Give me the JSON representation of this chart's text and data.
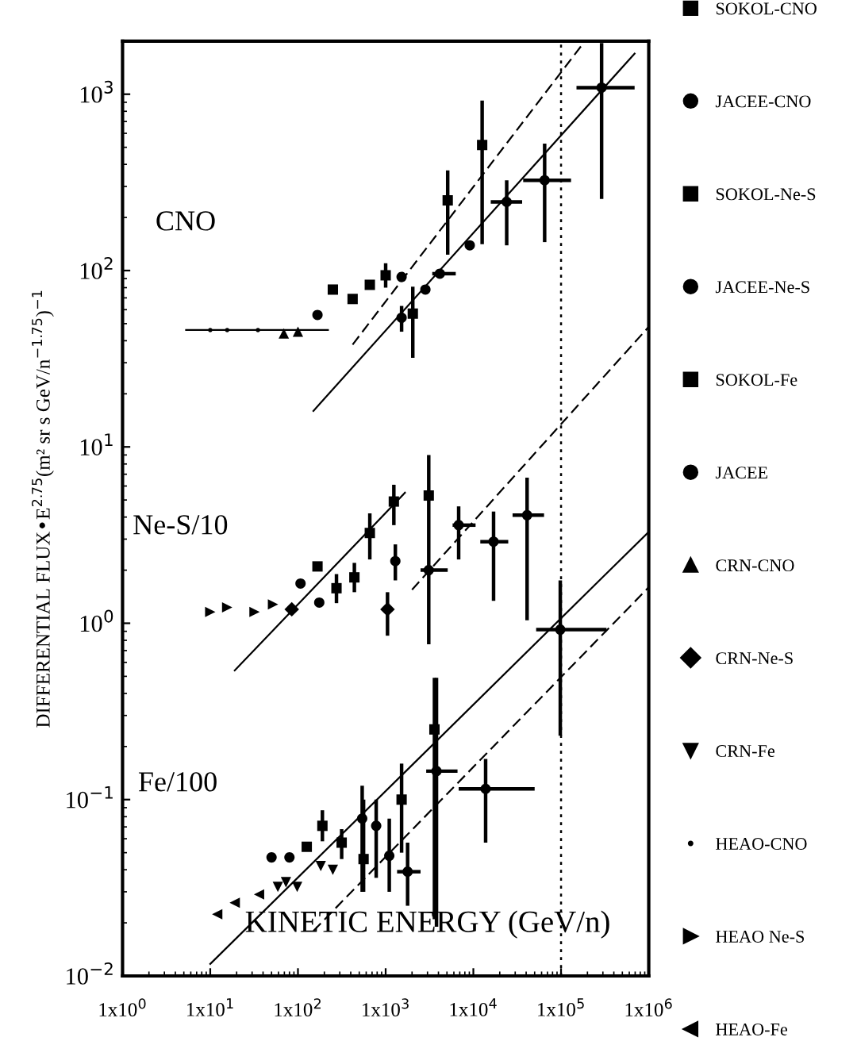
{
  "chart_data": {
    "type": "scatter",
    "xlabel": "KINETIC ENERGY (GeV/n)",
    "ylabel": "DIFFERENTIAL FLUX•E$^{2.75}$(m² sr s GeV/n$^{−1.75}$)$^{−1}$",
    "log": "xy",
    "grid": false,
    "legend": "right",
    "xlim": [
      1,
      1000000
    ],
    "ylim": [
      0.01,
      2000
    ],
    "xticks": [
      {
        "value": 1,
        "label": "1x10$^{0}$"
      },
      {
        "value": 10,
        "label": "1x10$^{1}$"
      },
      {
        "value": 100,
        "label": "1x10$^{2}$"
      },
      {
        "value": 1000,
        "label": "1x10$^{3}$"
      },
      {
        "value": 10000,
        "label": "1x10$^{4}$"
      },
      {
        "value": 100000,
        "label": "1x10$^{5}$"
      },
      {
        "value": 1000000,
        "label": "1x10$^{6}$"
      }
    ],
    "yticks": [
      {
        "value": 0.01,
        "label": "10$^{−2}$"
      },
      {
        "value": 0.1,
        "label": "10$^{−1}$"
      },
      {
        "value": 1,
        "label": "10$^{0}$"
      },
      {
        "value": 10,
        "label": "10$^{1}$"
      },
      {
        "value": 100,
        "label": "10$^{2}$"
      },
      {
        "value": 1000,
        "label": "10$^{3}$"
      }
    ],
    "annotations": [
      "CNO",
      "Ne-S/10",
      "Fe/100"
    ],
    "ref_lines": [
      {
        "axis": "x",
        "value": 100000,
        "line_style": "dotted",
        "color": "#000000"
      }
    ],
    "series": [
      {
        "name": "SOKOL-CNO",
        "marker": "square",
        "color": "#000000",
        "x": [
          250,
          420,
          660,
          1000,
          2040,
          5100,
          12600
        ],
        "values": [
          78,
          69,
          83,
          94,
          57,
          250,
          515
        ],
        "errors": [
          null,
          null,
          null,
          [
            80,
            110
          ],
          [
            32,
            81
          ],
          [
            123,
            370
          ],
          [
            141,
            920
          ]
        ]
      },
      {
        "name": "JACEE-CNO",
        "marker": "circle",
        "color": "#000000",
        "x": [
          167,
          1520,
          1520,
          2840,
          4150,
          9100,
          24000,
          65000,
          290000
        ],
        "values": [
          56,
          54,
          92,
          78,
          96,
          139,
          245,
          325,
          1090
        ],
        "errors": [
          null,
          [
            45,
            63
          ],
          null,
          null,
          null,
          null,
          [
            139,
            325
          ],
          [
            145,
            525
          ],
          [
            255,
            1950
          ]
        ],
        "xerrors": [
          null,
          null,
          null,
          null,
          [
            3400,
            6300
          ],
          null,
          [
            15800,
            36000
          ],
          [
            37000,
            130000
          ],
          [
            150000,
            690000
          ]
        ]
      },
      {
        "name": "SOKOL-Ne-S",
        "marker": "square",
        "color": "#000000",
        "x": [
          167,
          275,
          440,
          660,
          1240,
          3100
        ],
        "values": [
          2.1,
          1.58,
          1.82,
          3.25,
          4.9,
          5.3
        ],
        "errors": [
          null,
          [
            1.3,
            1.9
          ],
          [
            1.5,
            2.2
          ],
          [
            2.3,
            4.2
          ],
          [
            3.6,
            6.1
          ],
          [
            0.76,
            9
          ]
        ]
      },
      {
        "name": "JACEE-Ne-S",
        "marker": "circle",
        "color": "#000000",
        "x": [
          107,
          175,
          1290,
          3100,
          6800,
          17000,
          41000,
          98000
        ],
        "values": [
          1.68,
          1.31,
          2.25,
          2.0,
          3.6,
          2.9,
          4.1,
          0.92
        ],
        "errors": [
          null,
          null,
          [
            1.75,
            2.8
          ],
          null,
          [
            2.3,
            4.6
          ],
          [
            1.34,
            4.3
          ],
          [
            1.04,
            6.7
          ],
          [
            0.23,
            1.75
          ]
        ],
        "xerrors": [
          null,
          null,
          null,
          [
            2500,
            5100
          ],
          [
            5800,
            10600
          ],
          [
            12000,
            25000
          ],
          [
            28000,
            64000
          ],
          [
            52000,
            330000
          ]
        ]
      },
      {
        "name": "SOKOL-Fe",
        "marker": "square",
        "color": "#000000",
        "x": [
          126,
          190,
          315,
          560,
          1520,
          3600
        ],
        "values": [
          0.054,
          0.071,
          0.057,
          0.046,
          0.1,
          0.25
        ],
        "errors": [
          null,
          [
            0.058,
            0.087
          ],
          [
            0.046,
            0.068
          ],
          [
            0.03,
            0.1
          ],
          [
            0.05,
            0.16
          ],
          [
            0.021,
            0.49
          ]
        ]
      },
      {
        "name": "JACEE",
        "marker": "circle",
        "color": "#000000",
        "x": [
          50,
          80,
          540,
          780,
          1100,
          1780,
          3800,
          13800
        ],
        "values": [
          0.047,
          0.047,
          0.078,
          0.071,
          0.048,
          0.039,
          0.145,
          0.115
        ],
        "errors": [
          null,
          null,
          [
            0.03,
            0.12
          ],
          [
            0.036,
            0.1
          ],
          [
            0.03,
            0.078
          ],
          [
            0.025,
            0.057
          ],
          [
            0.019,
            0.49
          ],
          [
            0.057,
            0.17
          ]
        ],
        "xerrors": [
          null,
          null,
          null,
          null,
          null,
          [
            1350,
            2500
          ],
          [
            2900,
            6600
          ],
          [
            6800,
            50000
          ]
        ]
      },
      {
        "name": "CRN-CNO",
        "marker": "triangle",
        "color": "#000000",
        "x": [
          69,
          100
        ],
        "values": [
          44,
          45
        ]
      },
      {
        "name": "CRN-Ne-S",
        "marker": "diamond",
        "color": "#000000",
        "x": [
          85,
          1050
        ],
        "values": [
          1.2,
          1.2
        ],
        "errors": [
          null,
          [
            0.85,
            1.5
          ]
        ]
      },
      {
        "name": "CRN-Fe",
        "marker": "triangle_down",
        "color": "#000000",
        "x": [
          59,
          73,
          98,
          182,
          250
        ],
        "values": [
          0.032,
          0.034,
          0.032,
          0.042,
          0.04
        ]
      },
      {
        "name": "HEAO-CNO",
        "marker": "point",
        "color": "#000000",
        "x": [
          10,
          15.6,
          35
        ],
        "values": [
          46,
          46,
          46
        ]
      },
      {
        "name": "HEAO Ne-S",
        "marker": "triangle_right",
        "color": "#000000",
        "x": [
          10,
          15.6,
          32,
          52
        ],
        "values": [
          1.16,
          1.23,
          1.16,
          1.28
        ]
      },
      {
        "name": "HEAO-Fe",
        "marker": "triangle_left",
        "color": "#000000",
        "x": [
          12,
          19,
          36
        ],
        "values": [
          0.0224,
          0.026,
          0.029
        ]
      },
      {
        "type": "line",
        "line_style": "solid",
        "color": "#000000",
        "x": [
          5.3,
          220
        ],
        "values": [
          46,
          46
        ]
      },
      {
        "type": "line",
        "line_style": "solid",
        "color": "#000000",
        "x": [
          150,
          690000
        ],
        "values": [
          16,
          1700
        ]
      },
      {
        "type": "line",
        "line_style": "dashed",
        "color": "#000000",
        "x": [
          420,
          180000
        ],
        "values": [
          38,
          1950
        ]
      },
      {
        "type": "line",
        "line_style": "solid",
        "color": "#000000",
        "x": [
          19,
          1660
        ],
        "values": [
          0.54,
          5.5
        ]
      },
      {
        "type": "line",
        "line_style": "dashed",
        "color": "#000000",
        "x": [
          2000,
          1000000
        ],
        "values": [
          1.55,
          48
        ]
      },
      {
        "type": "line",
        "line_style": "solid",
        "color": "#000000",
        "x": [
          10,
          1000000
        ],
        "values": [
          0.0117,
          3.3
        ]
      },
      {
        "type": "line",
        "line_style": "dashed",
        "color": "#000000",
        "x": [
          150,
          1000000
        ],
        "values": [
          0.018,
          1.6
        ]
      }
    ]
  }
}
